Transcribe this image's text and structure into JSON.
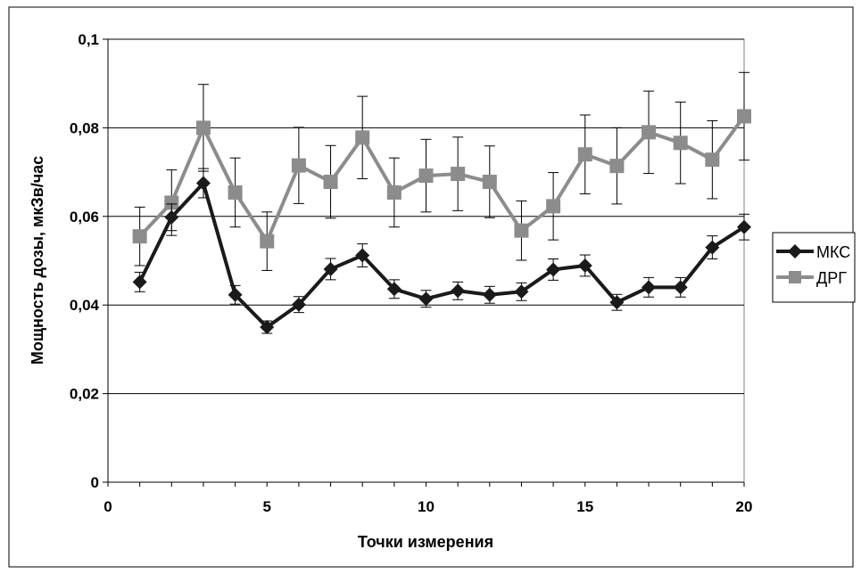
{
  "chart_data": {
    "type": "line",
    "title": "",
    "xlabel": "Точки измерения",
    "ylabel": "Мощность дозы, мкЗв/час",
    "xlim": [
      0,
      20
    ],
    "ylim": [
      0,
      0.1
    ],
    "x_ticks": [
      0,
      5,
      10,
      15,
      20
    ],
    "x_tick_labels": [
      "0",
      "5",
      "10",
      "15",
      "20"
    ],
    "y_ticks": [
      0,
      0.02,
      0.04,
      0.06,
      0.08,
      0.1
    ],
    "y_tick_labels": [
      "0",
      "0,02",
      "0,04",
      "0,06",
      "0,08",
      "0,1"
    ],
    "grid": "horizontal",
    "legend_position": "right",
    "x": [
      1,
      2,
      3,
      4,
      5,
      6,
      7,
      8,
      9,
      10,
      11,
      12,
      13,
      14,
      15,
      16,
      17,
      18,
      19,
      20
    ],
    "series": [
      {
        "name": "МКС",
        "color": "#1a1a1a",
        "marker": "diamond",
        "values": [
          0.0452,
          0.0598,
          0.0675,
          0.0423,
          0.035,
          0.0401,
          0.0481,
          0.0512,
          0.0436,
          0.0414,
          0.0432,
          0.0423,
          0.043,
          0.048,
          0.0489,
          0.0406,
          0.044,
          0.044,
          0.053,
          0.0576
        ],
        "error": [
          0.0022,
          0.003,
          0.0033,
          0.0021,
          0.0014,
          0.0018,
          0.0024,
          0.0026,
          0.0021,
          0.0019,
          0.002,
          0.0019,
          0.002,
          0.0024,
          0.0024,
          0.0018,
          0.0022,
          0.0022,
          0.0026,
          0.0029
        ]
      },
      {
        "name": "ДРГ",
        "color": "#8c8c8c",
        "marker": "square",
        "values": [
          0.0555,
          0.0631,
          0.08,
          0.0654,
          0.0544,
          0.0715,
          0.0678,
          0.0778,
          0.0654,
          0.0692,
          0.0696,
          0.0678,
          0.0568,
          0.0623,
          0.074,
          0.0714,
          0.079,
          0.0766,
          0.0728,
          0.0826
        ],
        "error": [
          0.0066,
          0.0074,
          0.0098,
          0.0078,
          0.0066,
          0.0086,
          0.0082,
          0.0093,
          0.0078,
          0.0082,
          0.0083,
          0.0081,
          0.0067,
          0.0076,
          0.0089,
          0.0086,
          0.0093,
          0.0092,
          0.0088,
          0.0099
        ]
      }
    ]
  }
}
